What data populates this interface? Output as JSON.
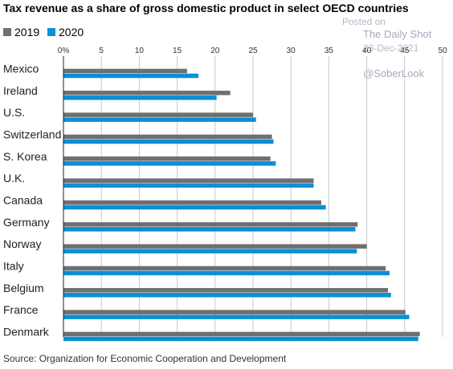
{
  "colors": {
    "2019": "#6f6f6f",
    "2020": "#0a8fd6",
    "grid": "#c9c9c9",
    "axis": "#222222"
  },
  "watermark": {
    "line1": "Posted on",
    "line2": "The Daily Shot",
    "line3": "23-Dec-2021",
    "line4": "@SoberLook"
  },
  "chart_data": {
    "type": "bar",
    "orientation": "horizontal",
    "title": "Tax revenue as a share of gross domestic product in select OECD countries",
    "source": "Source: Organization for Economic Cooperation and Development",
    "categories": [
      "Mexico",
      "Ireland",
      "U.S.",
      "Switzerland",
      "S. Korea",
      "U.K.",
      "Canada",
      "Germany",
      "Norway",
      "Italy",
      "Belgium",
      "France",
      "Denmark"
    ],
    "series": [
      {
        "name": "2019",
        "values": [
          16.3,
          22.0,
          25.0,
          27.5,
          27.3,
          33.0,
          34.0,
          38.8,
          40.0,
          42.5,
          42.8,
          45.1,
          47.0
        ]
      },
      {
        "name": "2020",
        "values": [
          17.8,
          20.2,
          25.4,
          27.7,
          28.0,
          33.0,
          34.6,
          38.5,
          38.7,
          43.0,
          43.2,
          45.6,
          46.8
        ]
      }
    ],
    "xlim": [
      0,
      50
    ],
    "xticks": [
      "0%",
      "5",
      "10",
      "15",
      "20",
      "25",
      "30",
      "35",
      "40",
      "45",
      "50"
    ],
    "grid": true,
    "legend_position": "top-left"
  }
}
